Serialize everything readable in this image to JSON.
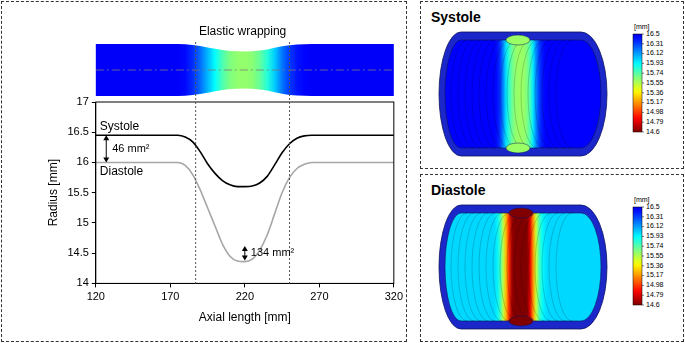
{
  "chart_data": {
    "type": "line",
    "x_label": "Axial length [mm]",
    "y_label": "Radius [mm]",
    "x": [
      120,
      125,
      130,
      135,
      140,
      145,
      150,
      155,
      160,
      165,
      170,
      175,
      180,
      185,
      190,
      195,
      200,
      205,
      210,
      215,
      220,
      225,
      230,
      235,
      240,
      245,
      250,
      255,
      260,
      265,
      270,
      275,
      280,
      285,
      290,
      295,
      300,
      305,
      310,
      315,
      320
    ],
    "series": [
      {
        "name": "Systole",
        "color": "#000000",
        "values": [
          16.45,
          16.45,
          16.45,
          16.45,
          16.45,
          16.45,
          16.45,
          16.45,
          16.45,
          16.45,
          16.45,
          16.45,
          16.42,
          16.34,
          16.18,
          15.98,
          15.82,
          15.7,
          15.63,
          15.6,
          15.6,
          15.61,
          15.66,
          15.77,
          15.96,
          16.16,
          16.31,
          16.4,
          16.44,
          16.45,
          16.45,
          16.45,
          16.45,
          16.45,
          16.45,
          16.45,
          16.45,
          16.45,
          16.45,
          16.45,
          16.45
        ]
      },
      {
        "name": "Diastole",
        "color": "#a6a6a6",
        "values": [
          16.0,
          16.0,
          16.0,
          16.0,
          16.0,
          16.0,
          16.0,
          16.0,
          16.0,
          16.0,
          16.0,
          16.0,
          15.95,
          15.8,
          15.55,
          15.25,
          14.95,
          14.65,
          14.45,
          14.37,
          14.36,
          14.4,
          14.55,
          14.8,
          15.15,
          15.5,
          15.75,
          15.9,
          15.97,
          16.0,
          16.0,
          16.0,
          16.0,
          16.0,
          16.0,
          16.0,
          16.0,
          16.0,
          16.0,
          16.0,
          16.0
        ]
      }
    ],
    "xlim": [
      120,
      320
    ],
    "xticks": [
      120,
      170,
      220,
      270,
      320
    ],
    "ylim": [
      14,
      17
    ],
    "yticks": [
      14,
      14.5,
      15,
      15.5,
      16,
      16.5,
      17
    ],
    "grid": false,
    "annotations": [
      {
        "text": "46 mm²",
        "x": 127,
        "y": [
          16.0,
          16.45
        ]
      },
      {
        "text": "134 mm²",
        "x": 220,
        "y": [
          14.38,
          14.62
        ]
      }
    ],
    "region": {
      "label": "Elastic wrapping",
      "x": [
        187,
        250
      ]
    }
  },
  "panels": [
    {
      "title": "Systole",
      "colorbar": {
        "label": "[mm]",
        "range": [
          14.6,
          16.5
        ],
        "ticks": [
          16.5,
          16.31,
          16.12,
          15.93,
          15.74,
          15.55,
          15.36,
          15.17,
          14.98,
          14.79,
          14.6
        ]
      }
    },
    {
      "title": "Diastole",
      "colorbar": {
        "label": "[mm]",
        "range": [
          14.6,
          16.5
        ],
        "ticks": [
          16.5,
          16.31,
          16.12,
          15.93,
          15.74,
          15.55,
          15.36,
          15.17,
          14.98,
          14.79,
          14.6
        ]
      }
    }
  ]
}
